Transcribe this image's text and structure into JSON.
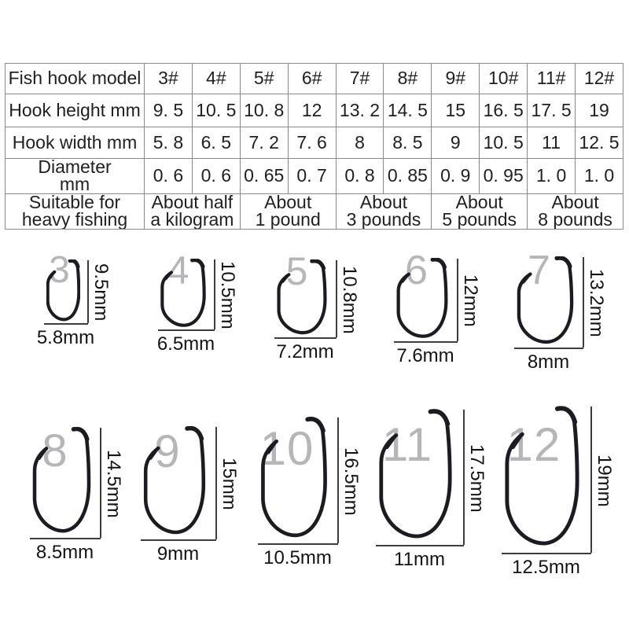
{
  "colors": {
    "background": "#ffffff",
    "text": "#1f1f1f",
    "table_border": "#8a8a8a",
    "hook": "#1b1b21",
    "size_number": "#b6b6b8",
    "measure_line": "#3d3d3d",
    "measure_text": "#141414"
  },
  "table": {
    "rows": [
      {
        "span": 1,
        "label": [
          "Fish hook model"
        ],
        "cells": [
          [
            "3#"
          ],
          [
            "4#"
          ],
          [
            "5#"
          ],
          [
            "6#"
          ],
          [
            "7#"
          ],
          [
            "8#"
          ],
          [
            "9#"
          ],
          [
            "10#"
          ],
          [
            "11#"
          ],
          [
            "12#"
          ]
        ]
      },
      {
        "span": 1,
        "label": [
          "Hook height mm"
        ],
        "cells": [
          [
            "9. 5"
          ],
          [
            "10. 5"
          ],
          [
            "10. 8"
          ],
          [
            "12"
          ],
          [
            "13. 2"
          ],
          [
            "14. 5"
          ],
          [
            "15"
          ],
          [
            "16. 5"
          ],
          [
            "17. 5"
          ],
          [
            "19"
          ]
        ]
      },
      {
        "span": 1,
        "label": [
          "Hook width mm"
        ],
        "cells": [
          [
            "5. 8"
          ],
          [
            "6. 5"
          ],
          [
            "7. 2"
          ],
          [
            "7. 6"
          ],
          [
            "8"
          ],
          [
            "8. 5"
          ],
          [
            "9"
          ],
          [
            "10. 5"
          ],
          [
            "11"
          ],
          [
            "12. 5"
          ]
        ]
      },
      {
        "span": 1,
        "label": [
          "Diameter",
          "mm"
        ],
        "cells": [
          [
            "0. 6"
          ],
          [
            "0. 6"
          ],
          [
            "0. 65"
          ],
          [
            "0. 7"
          ],
          [
            "0. 8"
          ],
          [
            "0. 85"
          ],
          [
            "0. 9"
          ],
          [
            "0. 95"
          ],
          [
            "1. 0"
          ],
          [
            "1. 0"
          ]
        ]
      },
      {
        "span": 2,
        "label": [
          "Suitable for",
          "heavy fishing"
        ],
        "cells": [
          [
            "About half",
            "a kilogram"
          ],
          [
            "About",
            "1 pound"
          ],
          [
            "About",
            "3 pounds"
          ],
          [
            "About",
            "5 pounds"
          ],
          [
            "About",
            "8 pounds"
          ]
        ]
      }
    ]
  },
  "hooks": [
    {
      "number": "3",
      "height_label": "9.5mm",
      "width_label": "5.8mm"
    },
    {
      "number": "4",
      "height_label": "10.5mm",
      "width_label": "6.5mm"
    },
    {
      "number": "5",
      "height_label": "10.8mm",
      "width_label": "7.2mm"
    },
    {
      "number": "6",
      "height_label": "12mm",
      "width_label": "7.6mm"
    },
    {
      "number": "7",
      "height_label": "13.2mm",
      "width_label": "8mm"
    },
    {
      "number": "8",
      "height_label": "14.5mm",
      "width_label": "8.5mm"
    },
    {
      "number": "9",
      "height_label": "15mm",
      "width_label": "9mm"
    },
    {
      "number": "10",
      "height_label": "16.5mm",
      "width_label": "10.5mm"
    },
    {
      "number": "11",
      "height_label": "17.5mm",
      "width_label": "11mm"
    },
    {
      "number": "12",
      "height_label": "19mm",
      "width_label": "12.5mm"
    }
  ]
}
